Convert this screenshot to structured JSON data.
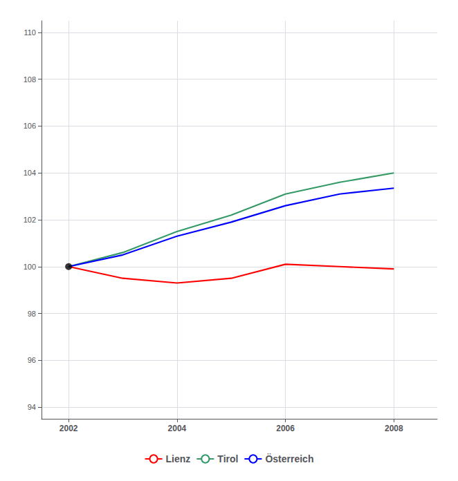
{
  "chart_data": {
    "type": "line",
    "x": [
      2002,
      2003,
      2004,
      2005,
      2006,
      2007,
      2008
    ],
    "series": [
      {
        "name": "Lienz",
        "color": "#FF0000",
        "values": [
          100.0,
          99.5,
          99.3,
          99.5,
          100.1,
          100.0,
          99.9
        ]
      },
      {
        "name": "Tirol",
        "color": "#339966",
        "values": [
          100.0,
          100.6,
          101.5,
          102.2,
          103.1,
          103.6,
          104.0
        ]
      },
      {
        "name": "Österreich",
        "color": "#0000FF",
        "values": [
          100.0,
          100.5,
          101.3,
          101.9,
          102.6,
          103.1,
          103.35
        ]
      }
    ],
    "points": [
      {
        "x": 2002,
        "y": 100.0,
        "color": "#000000"
      }
    ],
    "xlim": [
      2001.5,
      2008.8
    ],
    "xticks": [
      2002,
      2004,
      2006,
      2008
    ],
    "ylim": [
      93.5,
      110.5
    ],
    "yticks": [
      94,
      96,
      98,
      100,
      102,
      104,
      106,
      108,
      110
    ],
    "grid": true,
    "legend": "bottom"
  }
}
